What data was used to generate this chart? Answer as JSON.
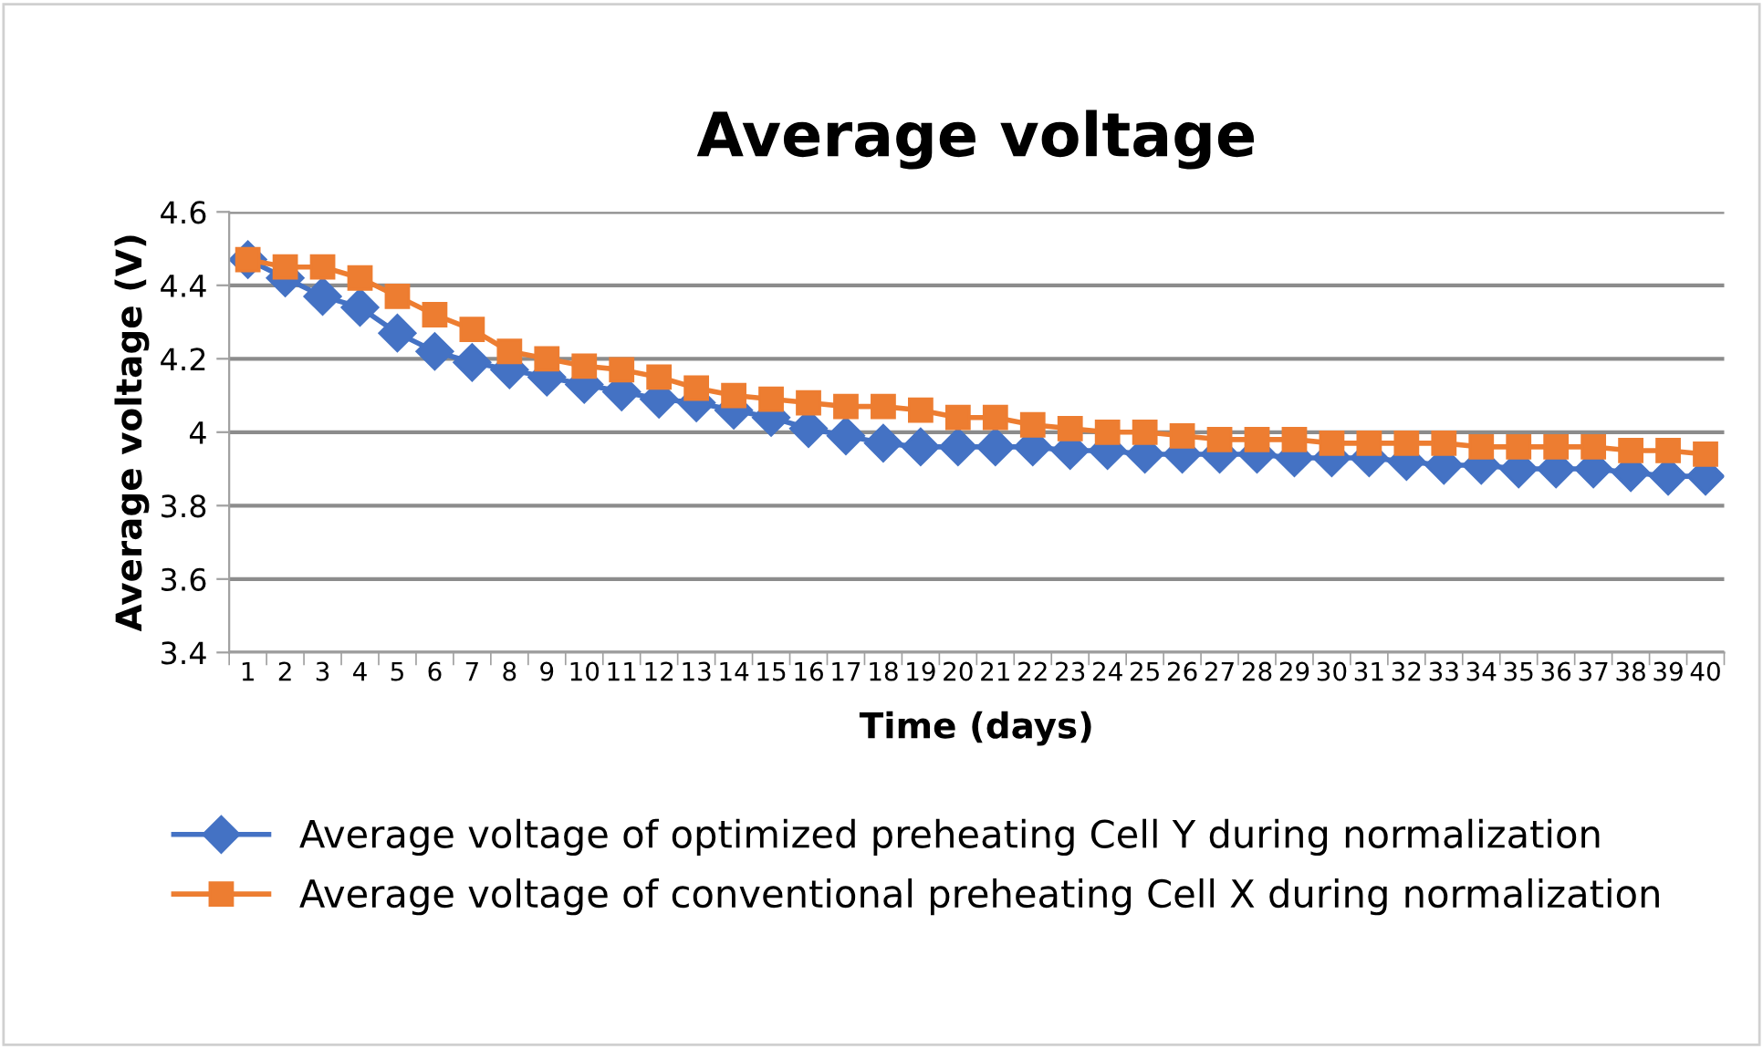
{
  "chart_data": {
    "type": "line",
    "title": "Average voltage",
    "xlabel": "Time (days)",
    "ylabel": "Average voltage (V)",
    "categories": [
      "1",
      "2",
      "3",
      "4",
      "5",
      "6",
      "7",
      "8",
      "9",
      "10",
      "11",
      "12",
      "13",
      "14",
      "15",
      "16",
      "17",
      "18",
      "19",
      "20",
      "21",
      "22",
      "23",
      "24",
      "25",
      "26",
      "27",
      "28",
      "29",
      "30",
      "31",
      "32",
      "33",
      "34",
      "35",
      "36",
      "37",
      "38",
      "39",
      "40"
    ],
    "ylim": [
      3.4,
      4.6
    ],
    "yticks": [
      3.4,
      3.6,
      3.8,
      {
        "value": 4,
        "label": "4"
      },
      4.2,
      4.4,
      4.6
    ],
    "grid": "y",
    "legend": "bottom",
    "series": [
      {
        "name": "Average voltage of optimized preheating Cell Y during normalization",
        "color": "#4472c4",
        "marker": "diamond",
        "values": [
          4.47,
          4.42,
          4.37,
          4.34,
          4.27,
          4.22,
          4.19,
          4.17,
          4.15,
          4.13,
          4.11,
          4.09,
          4.08,
          4.06,
          4.04,
          4.01,
          3.99,
          3.97,
          3.96,
          3.96,
          3.96,
          3.96,
          3.95,
          3.95,
          3.94,
          3.94,
          3.94,
          3.94,
          3.93,
          3.93,
          3.93,
          3.92,
          3.91,
          3.91,
          3.9,
          3.9,
          3.9,
          3.89,
          3.88,
          3.88
        ]
      },
      {
        "name": "Average voltage of conventional preheating Cell X during normalization",
        "color": "#ed7d31",
        "marker": "square",
        "values": [
          4.47,
          4.45,
          4.45,
          4.42,
          4.37,
          4.32,
          4.28,
          4.22,
          4.2,
          4.18,
          4.17,
          4.15,
          4.12,
          4.1,
          4.09,
          4.08,
          4.07,
          4.07,
          4.06,
          4.04,
          4.04,
          4.02,
          4.01,
          4.0,
          4.0,
          3.99,
          3.98,
          3.98,
          3.98,
          3.97,
          3.97,
          3.97,
          3.97,
          3.96,
          3.96,
          3.96,
          3.96,
          3.95,
          3.95,
          3.94
        ]
      }
    ]
  }
}
